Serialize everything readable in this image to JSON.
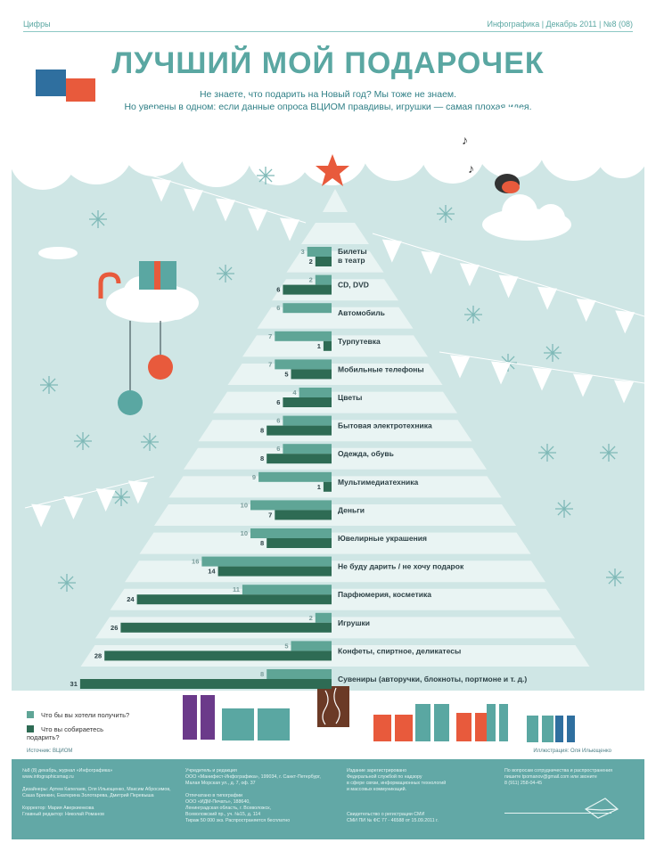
{
  "header": {
    "section": "Цифры",
    "issue": "Инфографика | Декабрь 2011 | №8 (08)"
  },
  "title": "ЛУЧШИЙ МОЙ ПОДАРОЧЕК",
  "subtitle_line1": "Не знаете, что подарить на Новый год? Мы тоже не знаем.",
  "subtitle_line2": "Но уверены в одном: если данные опроса ВЦИОМ правдивы, игрушки — самая плохая идея.",
  "colors": {
    "light_teal": "#5fa596",
    "dark_green": "#2e6b54",
    "accent_teal": "#5aa7a2",
    "background_blue": "#cfe6e5",
    "tree_stripe": "#e9f4f3",
    "red_star": "#e85a3c"
  },
  "chart_data": {
    "type": "bar",
    "orientation": "horizontal-diverging",
    "categories": [
      "Билеты в театр",
      "CD, DVD",
      "Автомобиль",
      "Турпутевка",
      "Мобильные телефоны",
      "Цветы",
      "Бытовая электротехника",
      "Одежда, обувь",
      "Мультимедиатехника",
      "Деньги",
      "Ювелирные украшения",
      "Не буду дарить / не хочу подарок",
      "Парфюмерия, косметика",
      "Игрушки",
      "Конфеты, спиртное, деликатесы",
      "Сувениры (авторучки, блокноты, портмоне и т. д.)"
    ],
    "series": [
      {
        "name": "Что бы вы хотели получить?",
        "color": "#5fa596",
        "values": [
          3,
          2,
          6,
          7,
          7,
          4,
          6,
          6,
          9,
          10,
          10,
          16,
          11,
          2,
          5,
          8
        ]
      },
      {
        "name": "Что вы собираетесь подарить?",
        "color": "#2e6b54",
        "values": [
          2,
          6,
          null,
          1,
          5,
          6,
          8,
          8,
          1,
          7,
          8,
          14,
          24,
          26,
          28,
          31
        ]
      }
    ]
  },
  "legend": {
    "want": "Что бы вы хотели получить?",
    "give": "Что вы собираетесь подарить?"
  },
  "source": "Источник: ВЦИОМ",
  "illustration": "Иллюстрация: Оля Ильющенко",
  "footer": {
    "col1": "№8 (8) декабрь, журнал «Инфографика»\nwww.infographicsmag.ru\n\nДизайнеры: Артем Капелаев, Оля Ильющенко, Максим Абросимов,\nСаша Бринкин, Екатерина Золотарева, Дмитрий Перевыша\n\nКорректор: Мария Аверкиенкова\nГлавный редактор: Николай Романов",
    "col2": "Учредитель и редакция\nООО «Манифест-Инфографика», 199034, г. Санкт-Петербург,\nМалая Морская ул., д. 7, оф. 37\n\nОтпечатано в типографии\nООО «ИДМ-Печать», 188640,\nЛенинградская область, г. Всеволожск,\nВсеволожский пр., уч. №15, д. 114\nТираж 50 000 экз. Распространяется бесплатно",
    "col3": "Издание зарегистрировано\nФедеральной службой по надзору\nв сфере связи, информационных технологий\nи массовых коммуникаций.\n\n\n\nСвидетельство о регистрации СМИ\nСМИ ПИ № ФС 77 - 46588 от 15.09.2011 г.",
    "col4": "По вопросам сотрудничества и распространения\nпишите tpomanov@gmail.com или звоните\n8 (911) 258-04-45"
  }
}
